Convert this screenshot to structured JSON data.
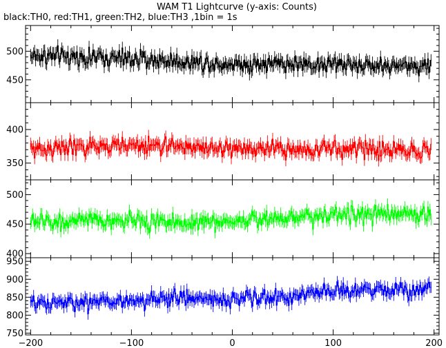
{
  "header": {
    "title": "WAM T1 Lightcurve (y-axis: Counts)",
    "subtitle": "black:TH0, red:TH1, green:TH2, blue:TH3 ,1bin = 1s"
  },
  "chart_data": {
    "type": "line",
    "title": "WAM T1 Lightcurve (y-axis: Counts)",
    "subtitle": "black:TH0, red:TH1, green:TH2, blue:TH3 ,1bin = 1s",
    "xlabel": "",
    "ylabel": "Counts",
    "xlim": [
      -205,
      205
    ],
    "x_ticks": [
      -200,
      -100,
      0,
      100,
      200
    ],
    "x_tick_labels": [
      "−200",
      "−100",
      "0",
      "100",
      "200"
    ],
    "bin_seconds": 1,
    "x_start": -200,
    "x_end": 197,
    "grid": false,
    "panels": [
      {
        "name": "TH0",
        "color": "#000000",
        "ylim": [
          410,
          545
        ],
        "y_ticks": [
          450,
          500
        ],
        "mean_values": [
          {
            "x": -200,
            "y": 492
          },
          {
            "x": -150,
            "y": 490
          },
          {
            "x": -100,
            "y": 486
          },
          {
            "x": -50,
            "y": 482
          },
          {
            "x": 0,
            "y": 478
          },
          {
            "x": 50,
            "y": 478
          },
          {
            "x": 100,
            "y": 477
          },
          {
            "x": 150,
            "y": 475
          },
          {
            "x": 197,
            "y": 474
          }
        ],
        "spread": 24
      },
      {
        "name": "TH1",
        "color": "#ff0000",
        "ylim": [
          325,
          440
        ],
        "y_ticks": [
          350,
          400
        ],
        "mean_values": [
          {
            "x": -200,
            "y": 371
          },
          {
            "x": -150,
            "y": 373
          },
          {
            "x": -100,
            "y": 376
          },
          {
            "x": -50,
            "y": 375
          },
          {
            "x": 0,
            "y": 371
          },
          {
            "x": 50,
            "y": 370
          },
          {
            "x": 100,
            "y": 371
          },
          {
            "x": 150,
            "y": 370
          },
          {
            "x": 197,
            "y": 369
          }
        ],
        "spread": 20
      },
      {
        "name": "TH2",
        "color": "#00ff00",
        "ylim": [
          393,
          525
        ],
        "y_ticks": [
          400,
          450,
          500
        ],
        "mean_values": [
          {
            "x": -200,
            "y": 455
          },
          {
            "x": -150,
            "y": 454
          },
          {
            "x": -100,
            "y": 456
          },
          {
            "x": -50,
            "y": 452
          },
          {
            "x": 0,
            "y": 455
          },
          {
            "x": 50,
            "y": 462
          },
          {
            "x": 100,
            "y": 466
          },
          {
            "x": 150,
            "y": 466
          },
          {
            "x": 197,
            "y": 467
          }
        ],
        "spread": 22
      },
      {
        "name": "TH3",
        "color": "#0000ff",
        "ylim": [
          745,
          960
        ],
        "y_ticks": [
          750,
          800,
          850,
          900,
          950
        ],
        "mean_values": [
          {
            "x": -200,
            "y": 830
          },
          {
            "x": -150,
            "y": 835
          },
          {
            "x": -100,
            "y": 840
          },
          {
            "x": -50,
            "y": 848
          },
          {
            "x": 0,
            "y": 845
          },
          {
            "x": 50,
            "y": 850
          },
          {
            "x": 100,
            "y": 865
          },
          {
            "x": 150,
            "y": 870
          },
          {
            "x": 197,
            "y": 875
          }
        ],
        "spread": 35
      }
    ]
  }
}
